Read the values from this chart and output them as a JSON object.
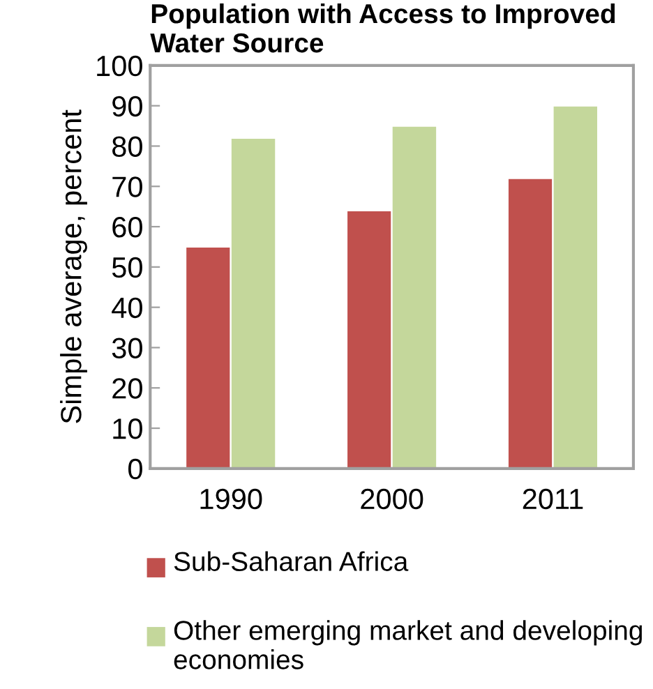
{
  "chart_data": {
    "type": "bar",
    "title": "Population with Access to Improved\nWater Source",
    "ylabel": "Simple average, percent",
    "categories": [
      "1990",
      "2000",
      "2011"
    ],
    "series": [
      {
        "name": "Sub-Saharan Africa",
        "color": "#c0504d",
        "values": [
          55,
          64,
          72
        ]
      },
      {
        "name": "Other emerging market and developing economies",
        "color": "#c4d79b",
        "values": [
          82,
          85,
          90
        ]
      }
    ],
    "ylim": [
      0,
      100
    ],
    "yticks": [
      0,
      10,
      20,
      30,
      40,
      50,
      60,
      70,
      80,
      90,
      100
    ],
    "grid": false,
    "legend": "bottom"
  }
}
